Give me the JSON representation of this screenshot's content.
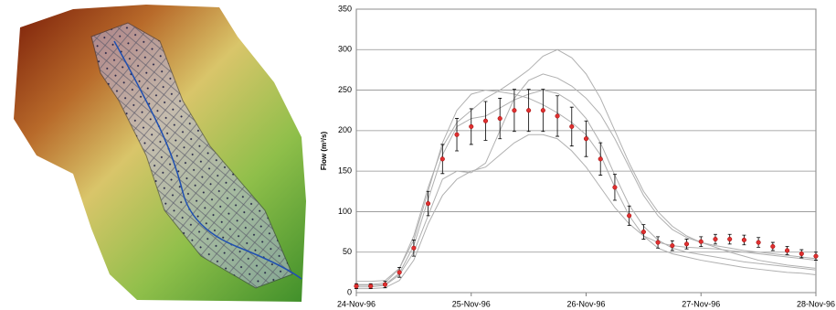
{
  "chart_data": {
    "type": "line",
    "ylabel": "Flow (m³/s)",
    "xlim": [
      0,
      4
    ],
    "xticks": [
      {
        "value": 0,
        "label": "24-Nov-96"
      },
      {
        "value": 1,
        "label": "25-Nov-96"
      },
      {
        "value": 2,
        "label": "26-Nov-96"
      },
      {
        "value": 3,
        "label": "27-Nov-96"
      },
      {
        "value": 4,
        "label": "28-Nov-96"
      }
    ],
    "ylim": [
      0,
      350
    ],
    "yticks": [
      0,
      50,
      100,
      150,
      200,
      250,
      300,
      350
    ],
    "grid": true,
    "x": [
      0,
      0.125,
      0.25,
      0.375,
      0.5,
      0.625,
      0.75,
      0.875,
      1,
      1.125,
      1.25,
      1.375,
      1.5,
      1.625,
      1.75,
      1.875,
      2,
      2.125,
      2.25,
      2.375,
      2.5,
      2.625,
      2.75,
      2.875,
      3,
      3.125,
      3.25,
      3.375,
      3.5,
      3.625,
      3.75,
      3.875,
      4
    ],
    "mean": {
      "color": "#e03030",
      "values": [
        8,
        8,
        10,
        25,
        55,
        110,
        165,
        195,
        205,
        212,
        215,
        225,
        225,
        225,
        218,
        205,
        190,
        165,
        130,
        95,
        75,
        62,
        58,
        60,
        63,
        66,
        66,
        65,
        62,
        57,
        52,
        48,
        45
      ],
      "errors": [
        3,
        3,
        4,
        6,
        10,
        15,
        18,
        20,
        22,
        24,
        25,
        26,
        26,
        26,
        25,
        24,
        22,
        20,
        16,
        12,
        9,
        7,
        6,
        6,
        6,
        6,
        6,
        6,
        6,
        5,
        5,
        5,
        5
      ]
    },
    "ensemble_color": "#b0b0b0",
    "ensemble": [
      [
        14,
        14,
        15,
        30,
        70,
        130,
        180,
        210,
        225,
        240,
        250,
        262,
        275,
        292,
        300,
        290,
        270,
        240,
        200,
        160,
        125,
        100,
        82,
        70,
        62,
        56,
        50,
        45,
        40,
        37,
        34,
        32,
        30
      ],
      [
        5,
        5,
        6,
        15,
        40,
        85,
        120,
        140,
        150,
        155,
        170,
        185,
        195,
        195,
        190,
        175,
        155,
        130,
        105,
        85,
        70,
        62,
        58,
        56,
        55,
        54,
        52,
        50,
        48,
        46,
        44,
        42,
        40
      ],
      [
        10,
        10,
        12,
        30,
        65,
        125,
        185,
        225,
        245,
        250,
        248,
        245,
        240,
        232,
        222,
        210,
        195,
        170,
        130,
        95,
        70,
        55,
        48,
        44,
        40,
        37,
        34,
        31,
        29,
        27,
        25,
        24,
        22
      ],
      [
        7,
        7,
        9,
        22,
        50,
        95,
        140,
        150,
        148,
        160,
        200,
        240,
        262,
        270,
        265,
        255,
        240,
        220,
        190,
        155,
        120,
        95,
        78,
        68,
        62,
        58,
        55,
        52,
        50,
        48,
        46,
        44,
        42
      ],
      [
        9,
        9,
        10,
        24,
        58,
        115,
        170,
        205,
        215,
        218,
        228,
        238,
        245,
        250,
        246,
        235,
        215,
        185,
        145,
        108,
        82,
        65,
        55,
        50,
        47,
        44,
        41,
        38,
        36,
        34,
        32,
        30,
        28
      ]
    ]
  }
}
